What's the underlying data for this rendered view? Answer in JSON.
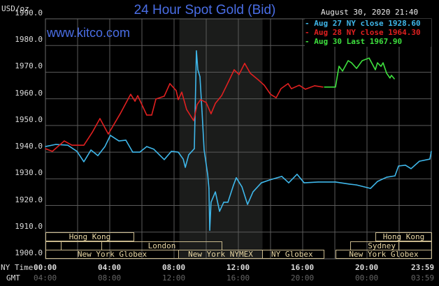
{
  "header": {
    "title": "24 Hour Spot Gold (Bid)",
    "site": "www.kitco.com",
    "unit": "USD/oz",
    "timestamp": "August 30, 2020 21:40"
  },
  "legend": [
    {
      "label": "- Aug 27 NY close 1928.60",
      "color": "#3fb7ea"
    },
    {
      "label": "- Aug 28 NY close 1964.30",
      "color": "#e02020"
    },
    {
      "label": "- Aug 30 Last 1967.90",
      "color": "#3ee03e"
    }
  ],
  "sessions": {
    "hong_kong_1": "Hong Kong",
    "london": "London",
    "ny_globex_1": "New York Globex",
    "ny_nymex": "New York NYMEX",
    "ny_globex_2": "NY Globex",
    "hong_kong_2": "Hong Kong",
    "sydney": "Sydney",
    "ny_globex_3": "New York Globex"
  },
  "axis": {
    "ny_time_label": "NY Time",
    "gmt_label": "GMT",
    "ny_ticks": [
      "00:00",
      "04:00",
      "08:00",
      "12:00",
      "16:00",
      "20:00",
      "23:59"
    ],
    "gmt_ticks": [
      "04:00",
      "08:00",
      "12:00",
      "16:00",
      "20:00",
      "00:00",
      "03:59"
    ]
  },
  "chart_data": {
    "type": "line",
    "title": "24 Hour Spot Gold (Bid)",
    "xlabel": "NY Time (hours)",
    "ylabel": "USD/oz",
    "xlim": [
      0,
      24
    ],
    "ylim": [
      1900,
      1990
    ],
    "y_ticks": [
      "1990.0",
      "1980.0",
      "1970.0",
      "1960.0",
      "1950.0",
      "1940.0",
      "1930.0",
      "1920.0",
      "1910.0",
      "1900.0"
    ],
    "grid": true,
    "legend_position": "top-right",
    "nymex_shaded_hours": [
      8.33,
      13.5
    ],
    "series": [
      {
        "name": "Aug 27 NY close 1928.60",
        "color": "#3fb7ea",
        "points": [
          [
            0,
            1942.1
          ],
          [
            0.65,
            1942.9
          ],
          [
            1.39,
            1942.6
          ],
          [
            1.96,
            1940.3
          ],
          [
            2.39,
            1936.4
          ],
          [
            2.83,
            1940.8
          ],
          [
            3.26,
            1938.7
          ],
          [
            3.7,
            1942.1
          ],
          [
            4.04,
            1946.3
          ],
          [
            4.57,
            1944.2
          ],
          [
            5.0,
            1944.5
          ],
          [
            5.43,
            1940.0
          ],
          [
            5.87,
            1940.0
          ],
          [
            6.3,
            1942.1
          ],
          [
            6.74,
            1941.1
          ],
          [
            7.39,
            1937.2
          ],
          [
            7.83,
            1940.3
          ],
          [
            8.26,
            1940.0
          ],
          [
            8.57,
            1937.4
          ],
          [
            8.7,
            1934.3
          ],
          [
            8.91,
            1939.0
          ],
          [
            9.26,
            1941.3
          ],
          [
            9.39,
            1978.0
          ],
          [
            9.48,
            1970.9
          ],
          [
            9.61,
            1968.3
          ],
          [
            9.74,
            1955.2
          ],
          [
            9.87,
            1940.8
          ],
          [
            10.09,
            1931.7
          ],
          [
            10.17,
            1926.4
          ],
          [
            10.22,
            1910.7
          ],
          [
            10.3,
            1921.2
          ],
          [
            10.57,
            1925.1
          ],
          [
            10.83,
            1917.8
          ],
          [
            11.09,
            1921.2
          ],
          [
            11.35,
            1921.2
          ],
          [
            11.7,
            1927.7
          ],
          [
            11.87,
            1930.4
          ],
          [
            12.22,
            1927.0
          ],
          [
            12.57,
            1920.4
          ],
          [
            12.91,
            1925.1
          ],
          [
            13.43,
            1928.5
          ],
          [
            13.96,
            1929.6
          ],
          [
            14.7,
            1930.9
          ],
          [
            15.13,
            1928.5
          ],
          [
            15.65,
            1931.7
          ],
          [
            16.09,
            1928.5
          ],
          [
            16.96,
            1928.8
          ],
          [
            18.04,
            1928.8
          ],
          [
            18.91,
            1928.0
          ],
          [
            19.35,
            1927.7
          ],
          [
            20.22,
            1926.4
          ],
          [
            20.65,
            1929.0
          ],
          [
            21.22,
            1930.6
          ],
          [
            21.74,
            1931.1
          ],
          [
            21.96,
            1934.8
          ],
          [
            22.39,
            1935.1
          ],
          [
            22.74,
            1933.8
          ],
          [
            23.26,
            1936.6
          ],
          [
            23.91,
            1937.4
          ],
          [
            24.0,
            1940.3
          ]
        ]
      },
      {
        "name": "Aug 28 NY close 1964.30",
        "color": "#e02020",
        "points": [
          [
            0,
            1941.3
          ],
          [
            0.43,
            1940.3
          ],
          [
            1.17,
            1944.2
          ],
          [
            1.65,
            1942.6
          ],
          [
            2.39,
            1942.6
          ],
          [
            2.91,
            1947.4
          ],
          [
            3.39,
            1952.6
          ],
          [
            3.91,
            1946.8
          ],
          [
            4.65,
            1954.4
          ],
          [
            5.3,
            1961.7
          ],
          [
            5.57,
            1959.1
          ],
          [
            5.74,
            1961.2
          ],
          [
            6.3,
            1953.9
          ],
          [
            6.61,
            1953.9
          ],
          [
            6.87,
            1959.9
          ],
          [
            7.39,
            1961.0
          ],
          [
            7.74,
            1965.7
          ],
          [
            8.13,
            1963.1
          ],
          [
            8.26,
            1959.7
          ],
          [
            8.48,
            1962.5
          ],
          [
            8.78,
            1956.0
          ],
          [
            9.22,
            1951.8
          ],
          [
            9.43,
            1957.8
          ],
          [
            9.65,
            1959.7
          ],
          [
            10.0,
            1958.6
          ],
          [
            10.3,
            1954.4
          ],
          [
            10.57,
            1958.3
          ],
          [
            10.96,
            1961.2
          ],
          [
            11.39,
            1966.5
          ],
          [
            11.74,
            1970.9
          ],
          [
            12.04,
            1969.1
          ],
          [
            12.39,
            1973.3
          ],
          [
            12.74,
            1969.6
          ],
          [
            13.26,
            1967.0
          ],
          [
            13.61,
            1965.1
          ],
          [
            14.0,
            1961.7
          ],
          [
            14.35,
            1960.4
          ],
          [
            14.65,
            1963.8
          ],
          [
            15.09,
            1965.7
          ],
          [
            15.3,
            1963.8
          ],
          [
            15.78,
            1965.1
          ],
          [
            16.17,
            1963.6
          ],
          [
            16.74,
            1964.9
          ],
          [
            17.26,
            1964.4
          ]
        ]
      },
      {
        "name": "Aug 30 Last 1967.90",
        "color": "#3ee03e",
        "points": [
          [
            17.35,
            1964.4
          ],
          [
            18.04,
            1964.4
          ],
          [
            18.17,
            1969.1
          ],
          [
            18.26,
            1972.2
          ],
          [
            18.48,
            1970.4
          ],
          [
            18.83,
            1974.3
          ],
          [
            19.04,
            1973.5
          ],
          [
            19.35,
            1971.4
          ],
          [
            19.7,
            1974.3
          ],
          [
            20.13,
            1975.3
          ],
          [
            20.52,
            1970.9
          ],
          [
            20.65,
            1973.5
          ],
          [
            20.87,
            1972.2
          ],
          [
            21.0,
            1973.5
          ],
          [
            21.22,
            1969.6
          ],
          [
            21.43,
            1967.8
          ],
          [
            21.52,
            1968.8
          ],
          [
            21.7,
            1967.5
          ]
        ]
      }
    ]
  }
}
